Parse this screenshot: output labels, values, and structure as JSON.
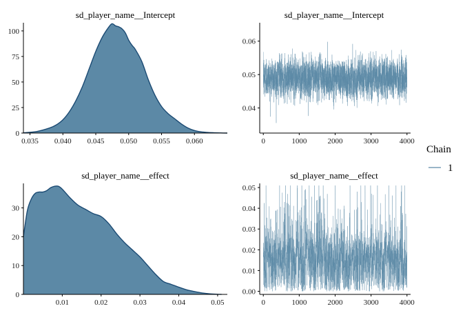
{
  "colors": {
    "density_fill": "#5c89a6",
    "density_line": "#1b4a73",
    "trace_line": "#5c89a6",
    "background": "#ffffff"
  },
  "legend": {
    "title": "Chain",
    "items": [
      {
        "label": "1",
        "color": "#5c89a6"
      }
    ]
  },
  "chart_data": [
    {
      "type": "area",
      "title": "sd_player_name__Intercept",
      "xlabel": "",
      "ylabel": "",
      "xlim": [
        0.034,
        0.065
      ],
      "ylim": [
        0,
        108
      ],
      "x_ticks": [
        0.035,
        0.04,
        0.045,
        0.05,
        0.055,
        0.06
      ],
      "x_tick_labels": [
        "0.035",
        "0.040",
        "0.045",
        "0.050",
        "0.055",
        "0.060"
      ],
      "y_ticks": [
        0,
        25,
        50,
        75,
        100
      ],
      "y_tick_labels": [
        "0",
        "25",
        "50",
        "75",
        "100"
      ],
      "grid": false,
      "series": [
        {
          "x": [
            0.034,
            0.036,
            0.038,
            0.039,
            0.04,
            0.041,
            0.042,
            0.043,
            0.044,
            0.045,
            0.046,
            0.047,
            0.0475,
            0.048,
            0.0485,
            0.049,
            0.0495,
            0.05,
            0.0505,
            0.051,
            0.052,
            0.053,
            0.054,
            0.055,
            0.056,
            0.057,
            0.058,
            0.059,
            0.06,
            0.061,
            0.062,
            0.063,
            0.064,
            0.065
          ],
          "y": [
            0.3,
            1.5,
            5,
            8,
            13,
            21,
            32,
            46,
            63,
            80,
            94,
            104,
            107,
            105,
            104,
            102,
            98,
            91,
            86,
            82,
            70,
            52,
            37,
            26,
            19,
            14,
            9,
            5,
            2.5,
            1.2,
            0.6,
            0.3,
            0.1,
            0
          ]
        }
      ]
    },
    {
      "type": "line",
      "title": "sd_player_name__Intercept",
      "xlabel": "",
      "ylabel": "",
      "xlim": [
        -100,
        4100
      ],
      "ylim": [
        0.0325,
        0.0655
      ],
      "x_ticks": [
        0,
        1000,
        2000,
        3000,
        4000
      ],
      "x_tick_labels": [
        "0",
        "1000",
        "2000",
        "3000",
        "4000"
      ],
      "y_ticks": [
        0.04,
        0.05,
        0.06
      ],
      "y_tick_labels": [
        "0.04",
        "0.05",
        "0.06"
      ],
      "grid": false,
      "series": [
        {
          "name": "1",
          "n_draws": 4000,
          "mean": 0.049,
          "sd": 0.004,
          "min": 0.034,
          "max": 0.065
        }
      ]
    },
    {
      "type": "area",
      "title": "sd_player_name__effect",
      "xlabel": "",
      "ylabel": "",
      "xlim": [
        0.0,
        0.0525
      ],
      "ylim": [
        0,
        38.5
      ],
      "x_ticks": [
        0.01,
        0.02,
        0.03,
        0.04,
        0.05
      ],
      "x_tick_labels": [
        "0.01",
        "0.02",
        "0.03",
        "0.04",
        "0.05"
      ],
      "y_ticks": [
        0,
        10,
        20,
        30
      ],
      "y_tick_labels": [
        "0",
        "10",
        "20",
        "30"
      ],
      "grid": false,
      "series": [
        {
          "x": [
            0.0,
            0.001,
            0.002,
            0.003,
            0.004,
            0.005,
            0.006,
            0.007,
            0.008,
            0.009,
            0.01,
            0.012,
            0.014,
            0.016,
            0.018,
            0.02,
            0.022,
            0.024,
            0.026,
            0.028,
            0.03,
            0.032,
            0.034,
            0.036,
            0.038,
            0.04,
            0.042,
            0.044,
            0.046,
            0.048,
            0.05,
            0.051
          ],
          "y": [
            20,
            29,
            33,
            35,
            35.5,
            35.5,
            36,
            37,
            37.5,
            37.5,
            36.5,
            33.5,
            31,
            29.5,
            28,
            27,
            24.5,
            21,
            18,
            15.5,
            13,
            10,
            7,
            4.5,
            3.5,
            2.5,
            1.6,
            1.0,
            0.5,
            0.2,
            0.05,
            0
          ]
        }
      ]
    },
    {
      "type": "line",
      "title": "sd_player_name__effect",
      "xlabel": "",
      "ylabel": "",
      "xlim": [
        -100,
        4100
      ],
      "ylim": [
        -0.0015,
        0.052
      ],
      "x_ticks": [
        0,
        1000,
        2000,
        3000,
        4000
      ],
      "x_tick_labels": [
        "0",
        "1000",
        "2000",
        "3000",
        "4000"
      ],
      "y_ticks": [
        0.0,
        0.01,
        0.02,
        0.03,
        0.04,
        0.05
      ],
      "y_tick_labels": [
        "0.00",
        "0.01",
        "0.02",
        "0.03",
        "0.04",
        "0.05"
      ],
      "grid": false,
      "series": [
        {
          "name": "1",
          "n_draws": 4000,
          "mean": 0.016,
          "sd": 0.011,
          "min": 0.0,
          "max": 0.051
        }
      ]
    }
  ]
}
